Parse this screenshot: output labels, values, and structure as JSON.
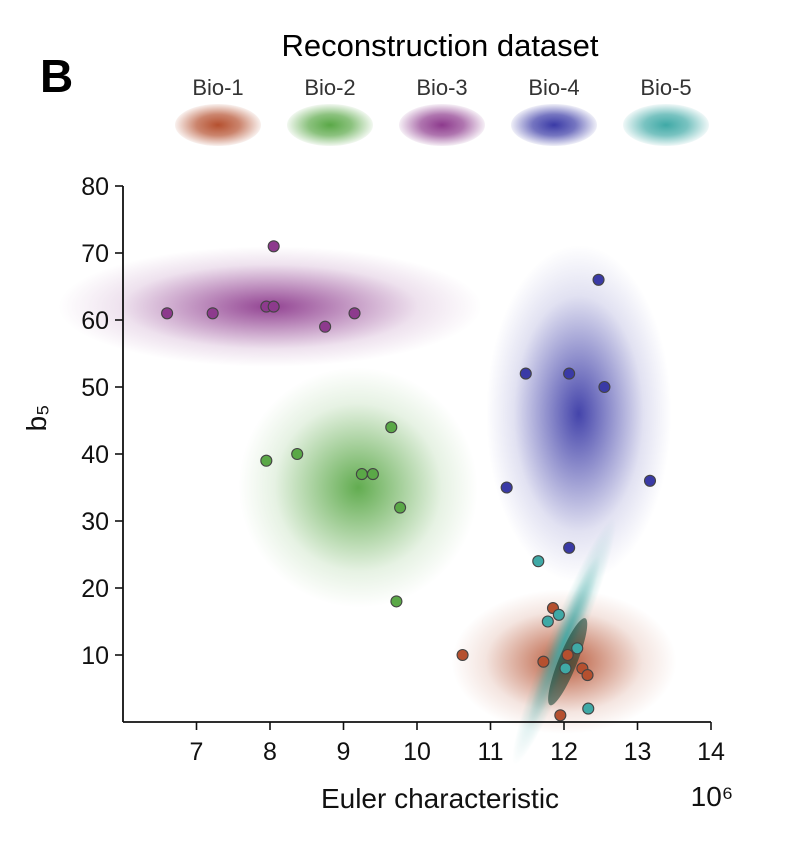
{
  "panel_label": "B",
  "chart_data": {
    "type": "scatter",
    "title": "Reconstruction dataset",
    "xlabel": "Euler characteristic",
    "x_multiplier": "10⁶",
    "ylabel": "b₅",
    "xlim": [
      6,
      14
    ],
    "ylim": [
      0,
      80
    ],
    "xticks": [
      7,
      8,
      9,
      10,
      11,
      12,
      13,
      14
    ],
    "yticks": [
      10,
      20,
      30,
      40,
      50,
      60,
      70,
      80
    ],
    "legend_position": "top",
    "grid": false,
    "series": [
      {
        "name": "Bio-1",
        "color": "#b5502f",
        "points": [
          [
            10.62,
            10
          ],
          [
            11.85,
            17
          ],
          [
            11.95,
            1
          ],
          [
            12.05,
            10
          ],
          [
            11.72,
            9
          ],
          [
            12.25,
            8
          ],
          [
            12.32,
            7
          ]
        ],
        "density": {
          "cx": 12.0,
          "cy": 9,
          "sx": 0.85,
          "sy": 6,
          "angle": 0
        }
      },
      {
        "name": "Bio-2",
        "color": "#5aa847",
        "points": [
          [
            7.95,
            39
          ],
          [
            8.37,
            40
          ],
          [
            9.25,
            37
          ],
          [
            9.4,
            37
          ],
          [
            9.65,
            44
          ],
          [
            9.77,
            32
          ],
          [
            9.72,
            18
          ]
        ],
        "density": {
          "cx": 9.2,
          "cy": 35,
          "sx": 0.9,
          "sy": 10,
          "angle": -35
        }
      },
      {
        "name": "Bio-3",
        "color": "#8d3a8d",
        "points": [
          [
            6.6,
            61
          ],
          [
            7.22,
            61
          ],
          [
            8.05,
            71
          ],
          [
            7.95,
            62
          ],
          [
            8.05,
            62
          ],
          [
            8.75,
            59
          ],
          [
            9.15,
            61
          ]
        ],
        "density": {
          "cx": 8.0,
          "cy": 62,
          "sx": 1.6,
          "sy": 5,
          "angle": 0
        }
      },
      {
        "name": "Bio-4",
        "color": "#3a3aa6",
        "points": [
          [
            11.48,
            52
          ],
          [
            12.07,
            52
          ],
          [
            12.47,
            66
          ],
          [
            12.55,
            50
          ],
          [
            11.22,
            35
          ],
          [
            12.07,
            26
          ],
          [
            13.17,
            36
          ]
        ],
        "density": {
          "cx": 12.2,
          "cy": 46,
          "sx": 0.7,
          "sy": 14,
          "angle": 0
        }
      },
      {
        "name": "Bio-5",
        "color": "#3fa9a6",
        "points": [
          [
            11.65,
            24
          ],
          [
            11.78,
            15
          ],
          [
            11.93,
            16
          ],
          [
            12.02,
            8
          ],
          [
            12.18,
            11
          ],
          [
            12.33,
            2
          ]
        ],
        "density": {
          "cx": 12.0,
          "cy": 12,
          "sx": 0.12,
          "sy": 11,
          "angle": 22
        }
      }
    ]
  }
}
